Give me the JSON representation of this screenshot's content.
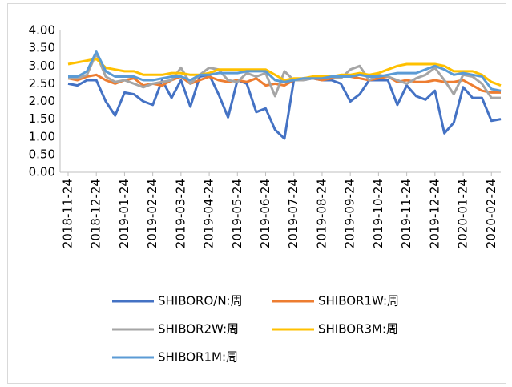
{
  "chart_data": {
    "type": "line",
    "categories": [
      "2018-11-24",
      null,
      null,
      "2018-12-24",
      null,
      null,
      "2019-01-24",
      null,
      null,
      "2019-02-24",
      null,
      null,
      "2019-03-24",
      null,
      null,
      "2019-04-24",
      null,
      null,
      "2019-05-24",
      null,
      null,
      "2019-06-24",
      null,
      null,
      "2019-07-24",
      null,
      null,
      "2019-08-24",
      null,
      null,
      "2019-09-24",
      null,
      null,
      "2019-10-24",
      null,
      null,
      "2019-11-24",
      null,
      null,
      "2019-12-24",
      null,
      null,
      "2020-01-24",
      null,
      null,
      "2020-02-24",
      null
    ],
    "series": [
      {
        "name": "SHIBORO/N:周",
        "color": "#4472c4",
        "values": [
          2.5,
          2.45,
          2.6,
          2.6,
          2.0,
          1.6,
          2.25,
          2.2,
          2.0,
          1.9,
          2.6,
          2.1,
          2.6,
          1.85,
          2.7,
          2.75,
          2.2,
          1.55,
          2.6,
          2.5,
          1.7,
          1.8,
          1.2,
          0.95,
          2.6,
          2.6,
          2.65,
          2.6,
          2.6,
          2.5,
          2.0,
          2.2,
          2.6,
          2.6,
          2.6,
          1.9,
          2.45,
          2.15,
          2.05,
          2.3,
          1.1,
          1.4,
          2.4,
          2.1,
          2.1,
          1.45,
          1.5
        ]
      },
      {
        "name": "SHIBOR1W:周",
        "color": "#ed7d31",
        "values": [
          2.65,
          2.6,
          2.7,
          2.75,
          2.6,
          2.5,
          2.6,
          2.65,
          2.45,
          2.5,
          2.45,
          2.6,
          2.7,
          2.5,
          2.6,
          2.7,
          2.6,
          2.55,
          2.6,
          2.55,
          2.65,
          2.45,
          2.5,
          2.45,
          2.6,
          2.65,
          2.65,
          2.6,
          2.65,
          2.7,
          2.7,
          2.65,
          2.6,
          2.65,
          2.7,
          2.55,
          2.6,
          2.55,
          2.55,
          2.6,
          2.55,
          2.55,
          2.6,
          2.45,
          2.3,
          2.25,
          2.25
        ]
      },
      {
        "name": "SHIBOR2W:周",
        "color": "#a5a5a5",
        "values": [
          2.65,
          2.65,
          2.75,
          3.35,
          2.7,
          2.55,
          2.6,
          2.5,
          2.4,
          2.5,
          2.55,
          2.6,
          2.95,
          2.5,
          2.75,
          2.95,
          2.9,
          2.6,
          2.55,
          2.8,
          2.7,
          2.8,
          2.15,
          2.85,
          2.6,
          2.6,
          2.65,
          2.7,
          2.7,
          2.65,
          2.9,
          3.0,
          2.6,
          2.75,
          2.7,
          2.6,
          2.5,
          2.65,
          2.75,
          2.95,
          2.6,
          2.2,
          2.75,
          2.7,
          2.5,
          2.1,
          2.1
        ]
      },
      {
        "name": "SHIBOR3M:周",
        "color": "#ffc000",
        "values": [
          3.05,
          3.1,
          3.15,
          3.2,
          2.95,
          2.9,
          2.85,
          2.85,
          2.75,
          2.75,
          2.75,
          2.8,
          2.8,
          2.75,
          2.75,
          2.8,
          2.9,
          2.9,
          2.9,
          2.9,
          2.9,
          2.9,
          2.75,
          2.6,
          2.65,
          2.65,
          2.7,
          2.7,
          2.7,
          2.75,
          2.75,
          2.8,
          2.75,
          2.8,
          2.9,
          3.0,
          3.05,
          3.05,
          3.05,
          3.05,
          3.0,
          2.85,
          2.85,
          2.85,
          2.75,
          2.55,
          2.45
        ]
      },
      {
        "name": "SHIBOR1M:周",
        "color": "#5b9bd5",
        "values": [
          2.7,
          2.7,
          2.85,
          3.4,
          2.85,
          2.7,
          2.7,
          2.7,
          2.6,
          2.6,
          2.65,
          2.7,
          2.7,
          2.6,
          2.75,
          2.75,
          2.8,
          2.8,
          2.8,
          2.85,
          2.85,
          2.85,
          2.6,
          2.55,
          2.6,
          2.65,
          2.65,
          2.65,
          2.7,
          2.7,
          2.7,
          2.75,
          2.7,
          2.7,
          2.75,
          2.8,
          2.8,
          2.8,
          2.9,
          3.0,
          2.9,
          2.75,
          2.8,
          2.75,
          2.7,
          2.35,
          2.3
        ]
      }
    ],
    "ylim": [
      0,
      4
    ],
    "yticks": [
      {
        "value": 0,
        "label": "0.00"
      },
      {
        "value": 0.5,
        "label": "0.50"
      },
      {
        "value": 1,
        "label": "1.00"
      },
      {
        "value": 1.5,
        "label": "1.50"
      },
      {
        "value": 2,
        "label": "2.00"
      },
      {
        "value": 2.5,
        "label": "2.50"
      },
      {
        "value": 3,
        "label": "3.00"
      },
      {
        "value": 3.5,
        "label": "3.50"
      },
      {
        "value": 4,
        "label": "4.00"
      }
    ],
    "grid": false
  }
}
